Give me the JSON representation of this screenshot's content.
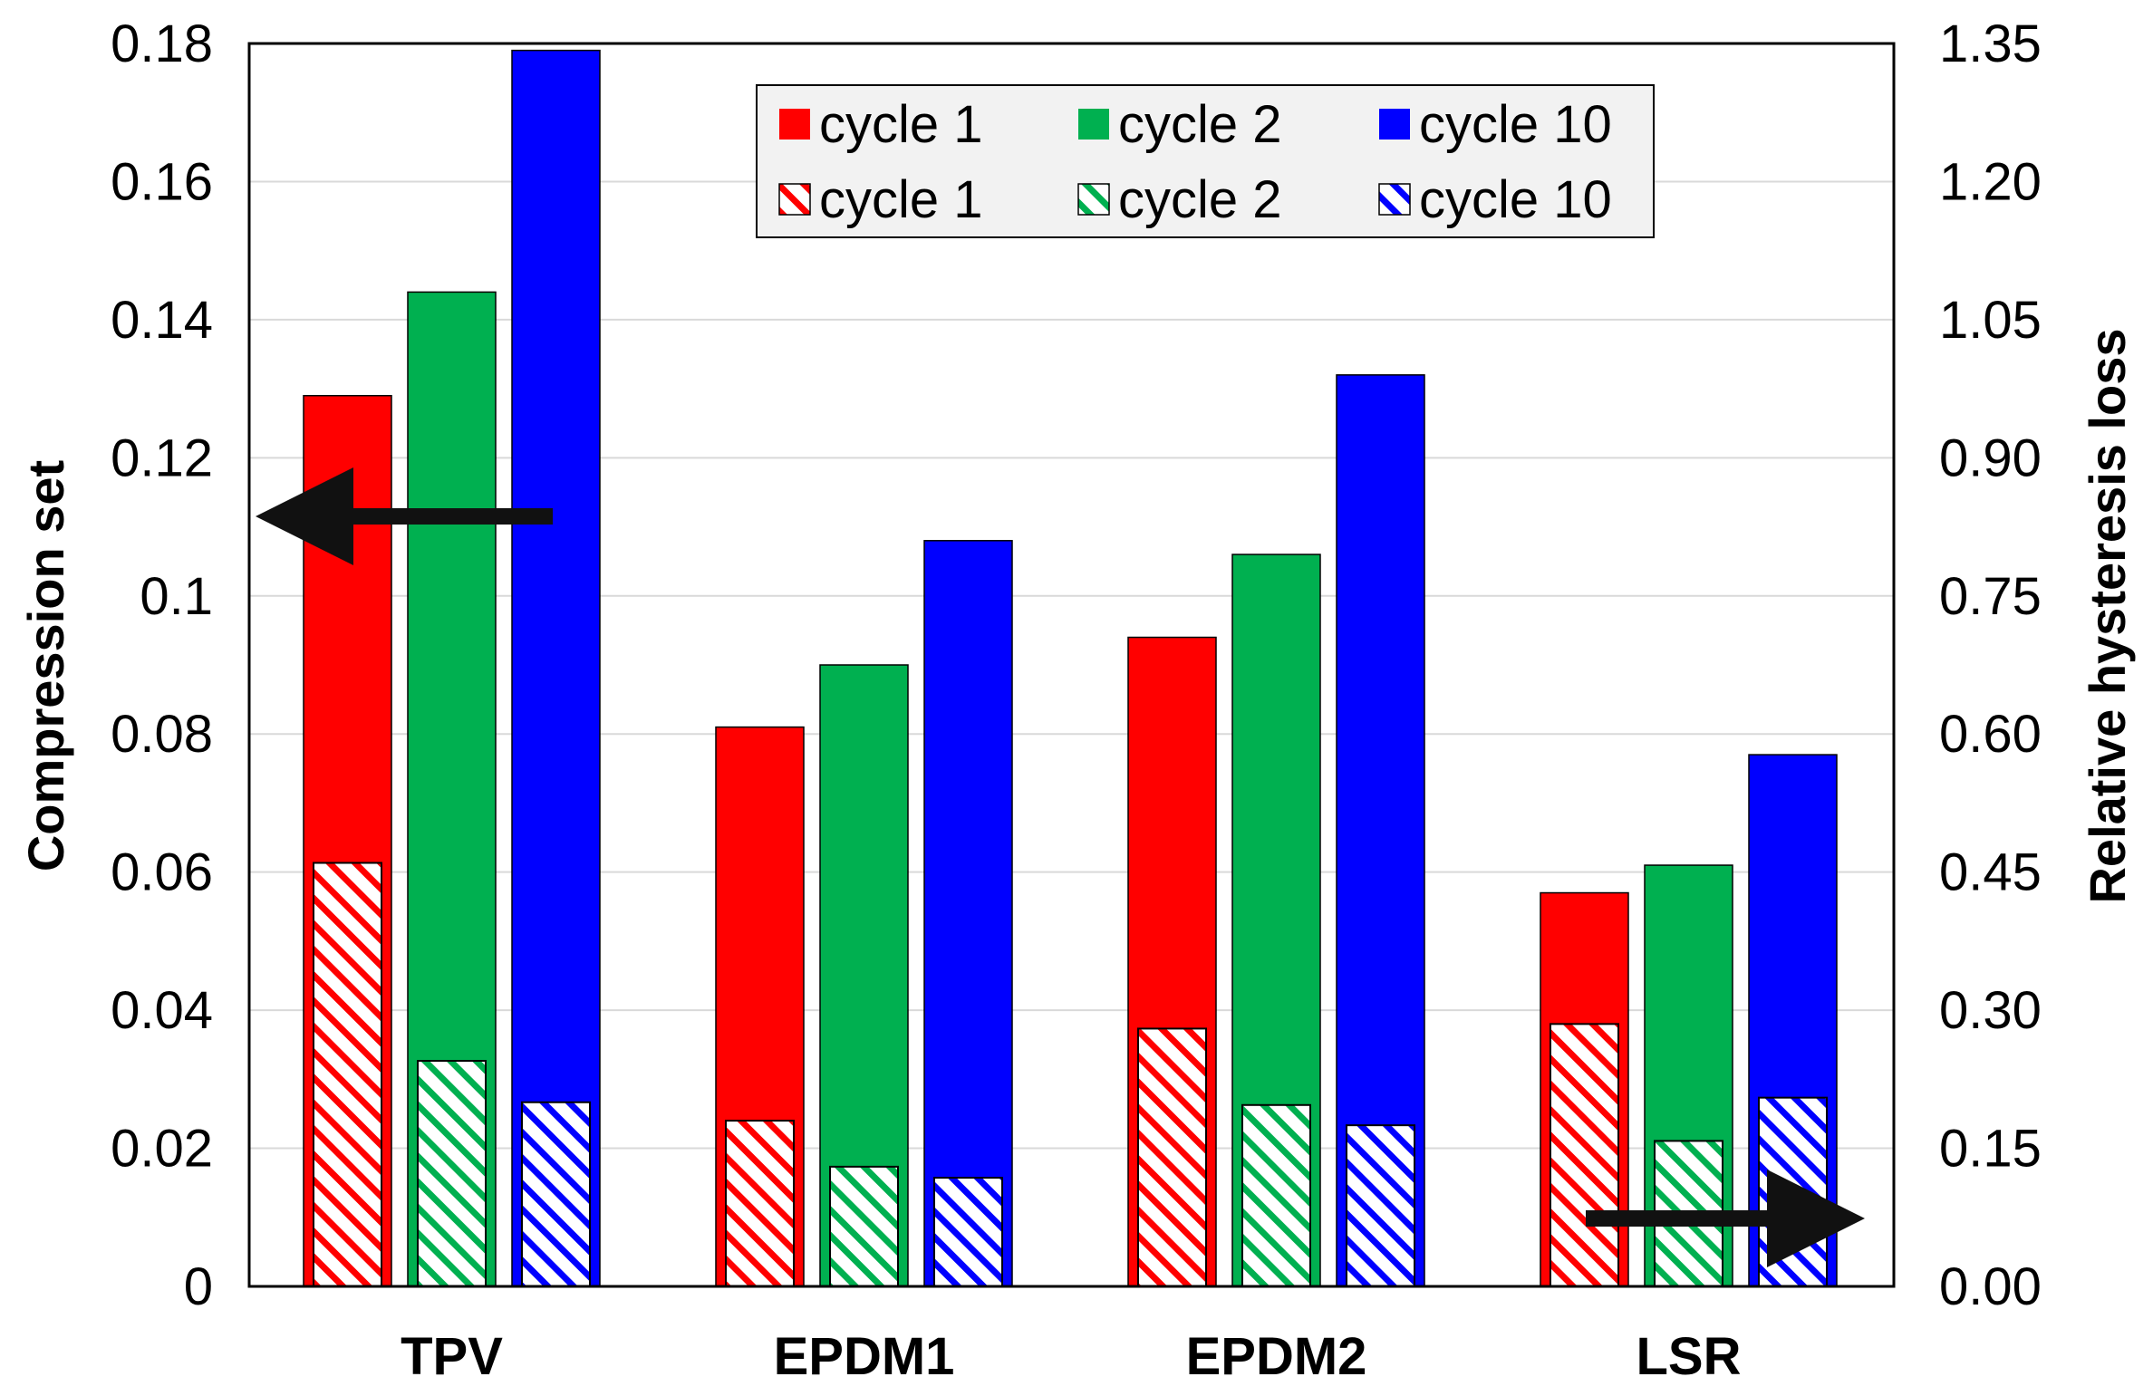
{
  "chart_data": {
    "type": "bar",
    "categories": [
      "TPV",
      "EPDM1",
      "EPDM2",
      "LSR"
    ],
    "series": [
      {
        "name": "cycle 1",
        "axis": "left",
        "metric": "Compression set",
        "style": "solid",
        "color": "#ff0000",
        "values": [
          0.129,
          0.081,
          0.094,
          0.057
        ]
      },
      {
        "name": "cycle 2",
        "axis": "left",
        "metric": "Compression set",
        "style": "solid",
        "color": "#00b050",
        "values": [
          0.144,
          0.09,
          0.106,
          0.061
        ]
      },
      {
        "name": "cycle 10",
        "axis": "left",
        "metric": "Compression set",
        "style": "solid",
        "color": "#0000ff",
        "values": [
          0.179,
          0.108,
          0.132,
          0.077
        ]
      },
      {
        "name": "cycle 1",
        "axis": "right",
        "metric": "Relative hysteresis loss",
        "style": "hatched",
        "color": "#ff0000",
        "values": [
          0.46,
          0.18,
          0.28,
          0.285
        ]
      },
      {
        "name": "cycle 2",
        "axis": "right",
        "metric": "Relative hysteresis loss",
        "style": "hatched",
        "color": "#00b050",
        "values": [
          0.245,
          0.13,
          0.197,
          0.158
        ]
      },
      {
        "name": "cycle 10",
        "axis": "right",
        "metric": "Relative hysteresis loss",
        "style": "hatched",
        "color": "#0000ff",
        "values": [
          0.2,
          0.118,
          0.175,
          0.205
        ]
      }
    ],
    "ylabel": "Compression set",
    "ylabel_right": "Relative hysteresis loss",
    "ylim": [
      0,
      0.18
    ],
    "ylim_right": [
      0,
      1.35
    ],
    "yticks": [
      "0",
      "0.02",
      "0.04",
      "0.06",
      "0.08",
      "0.1",
      "0.12",
      "0.14",
      "0.16",
      "0.18"
    ],
    "yticks_right": [
      "0.00",
      "0.15",
      "0.30",
      "0.45",
      "0.60",
      "0.75",
      "0.90",
      "1.05",
      "1.20",
      "1.35"
    ],
    "grid": true,
    "legend_position": "top-center",
    "annotations": [
      "arrow pointing to left axis",
      "arrow pointing to right axis"
    ]
  }
}
